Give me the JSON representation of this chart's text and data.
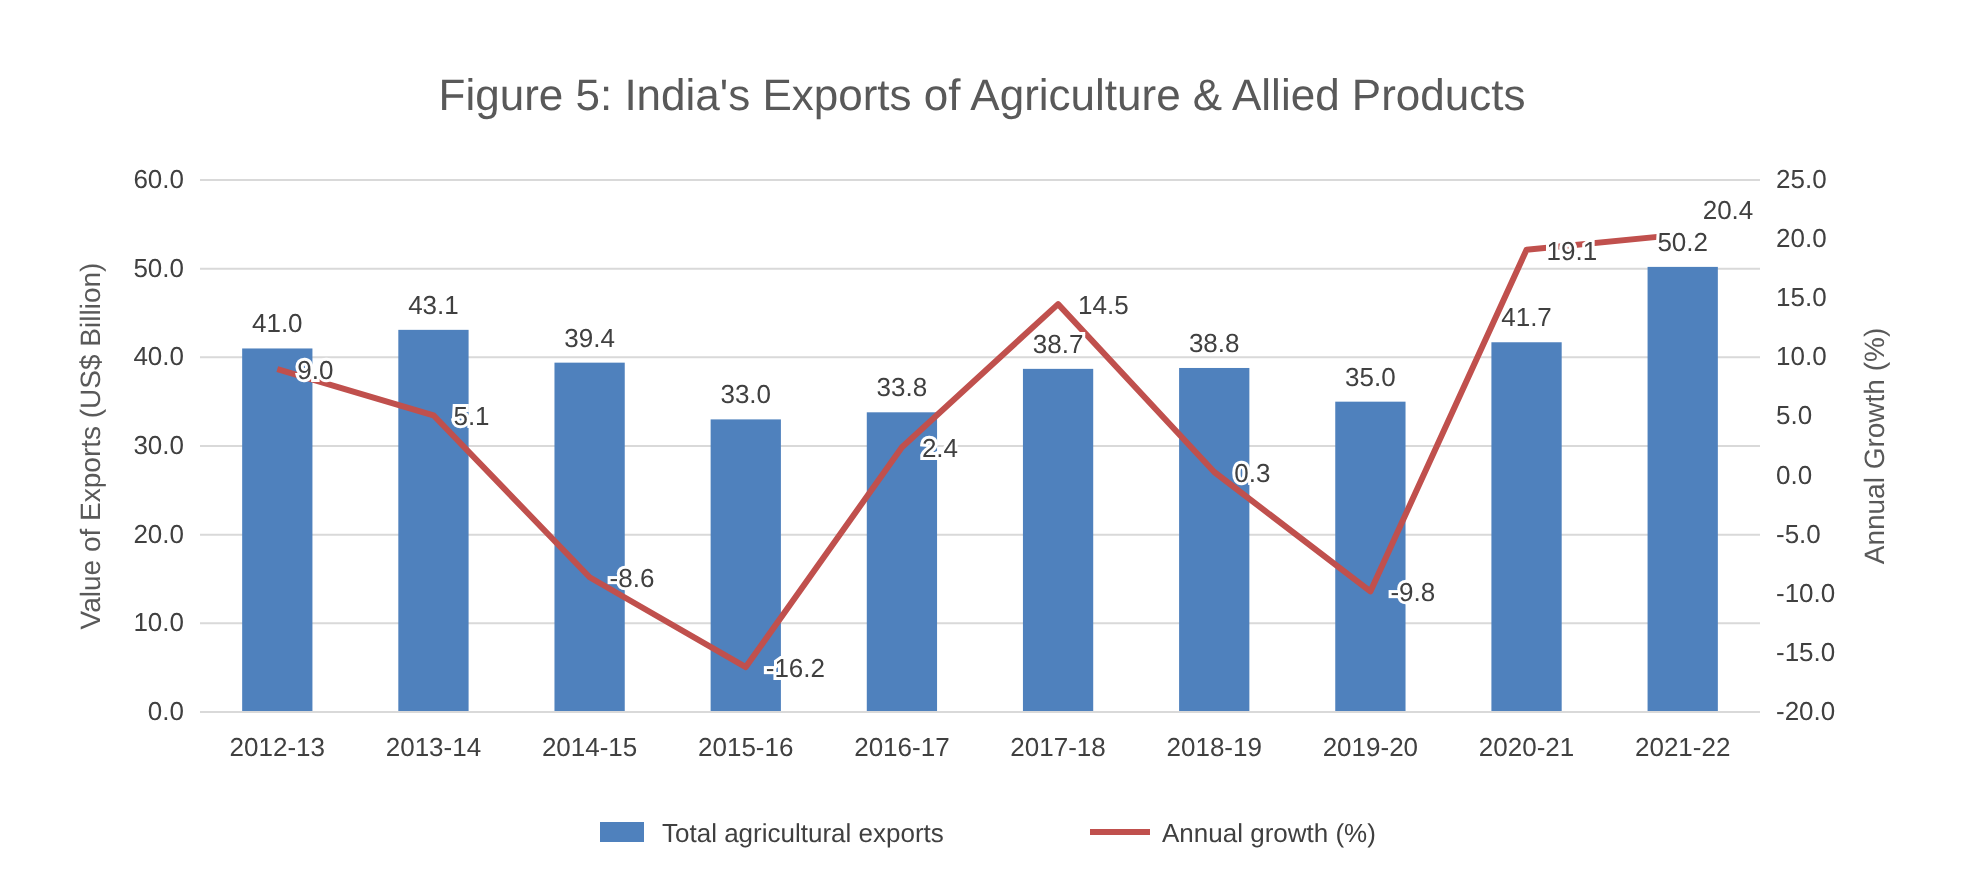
{
  "chart_data": {
    "type": "bar",
    "title": "Figure 5: India's Exports of Agriculture & Allied Products",
    "ylabel": "Value of Exports (US$ Billion)",
    "y2label": "Annual Growth (%)",
    "categories": [
      "2012-13",
      "2013-14",
      "2014-15",
      "2015-16",
      "2016-17",
      "2017-18",
      "2018-19",
      "2019-20",
      "2020-21",
      "2021-22"
    ],
    "series": [
      {
        "name": "Total agricultural exports",
        "color": "#4f81bd",
        "values": [
          41.0,
          43.1,
          39.4,
          33.0,
          33.8,
          38.7,
          38.8,
          35.0,
          41.7,
          50.2
        ],
        "value_labels": [
          "41.0",
          "43.1",
          "39.4",
          "33.0",
          "33.8",
          "38.7",
          "38.8",
          "35.0",
          "41.7",
          "50.2"
        ]
      },
      {
        "name": "Annual growth (%)",
        "type": "line",
        "axis": "y2",
        "color": "#c0504d",
        "values": [
          9.0,
          5.1,
          -8.6,
          -16.2,
          2.4,
          14.5,
          0.3,
          -9.8,
          19.1,
          20.4
        ],
        "value_labels": [
          "9.0",
          "5.1",
          "-8.6",
          "-16.2",
          "2.4",
          "14.5",
          "0.3",
          "-9.8",
          "19.1",
          "20.4"
        ]
      }
    ],
    "ylim": [
      0,
      60
    ],
    "yticks": [
      {
        "value": 0,
        "label": "0.0"
      },
      {
        "value": 10,
        "label": "10.0"
      },
      {
        "value": 20,
        "label": "20.0"
      },
      {
        "value": 30,
        "label": "30.0"
      },
      {
        "value": 40,
        "label": "40.0"
      },
      {
        "value": 50,
        "label": "50.0"
      },
      {
        "value": 60,
        "label": "60.0"
      }
    ],
    "y2lim": [
      -20,
      25
    ],
    "y2ticks": [
      {
        "value": -20,
        "label": "-20.0"
      },
      {
        "value": -15,
        "label": "-15.0"
      },
      {
        "value": -10,
        "label": "-10.0"
      },
      {
        "value": -5,
        "label": "-5.0"
      },
      {
        "value": 0,
        "label": "0.0"
      },
      {
        "value": 5,
        "label": "5.0"
      },
      {
        "value": 10,
        "label": "10.0"
      },
      {
        "value": 15,
        "label": "15.0"
      },
      {
        "value": 20,
        "label": "20.0"
      },
      {
        "value": 25,
        "label": "25.0"
      }
    ],
    "grid": "y",
    "legend": "bottom"
  }
}
